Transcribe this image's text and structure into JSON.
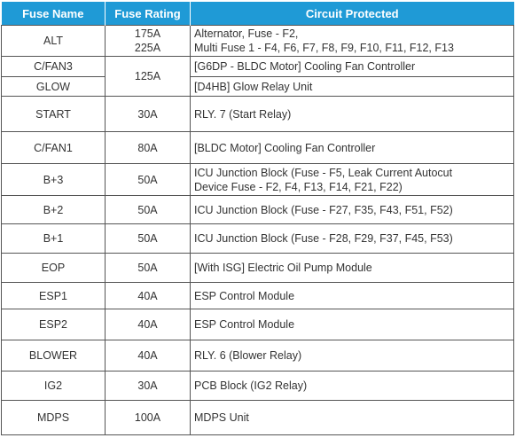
{
  "table": {
    "header": [
      "Fuse Name",
      "Fuse Rating",
      "Circuit Protected"
    ],
    "rows": [
      {
        "name": "ALT",
        "rating": [
          "175A",
          "225A"
        ],
        "circuit": [
          "Alternator, Fuse - F2,",
          "Multi Fuse 1 - F4, F6, F7, F8, F9, F10, F11, F12, F13"
        ]
      },
      {
        "name": "C/FAN3",
        "rating": [
          "125A"
        ],
        "circuit": [
          "[G6DP - BLDC Motor] Cooling Fan Controller"
        ]
      },
      {
        "name": "GLOW",
        "circuit": [
          "[D4HB] Glow Relay Unit"
        ]
      },
      {
        "name": "START",
        "rating": [
          "30A"
        ],
        "circuit": [
          "RLY. 7 (Start Relay)"
        ]
      },
      {
        "name": "C/FAN1",
        "rating": [
          "80A"
        ],
        "circuit": [
          "[BLDC Motor] Cooling Fan Controller"
        ]
      },
      {
        "name": "B+3",
        "rating": [
          "50A"
        ],
        "circuit": [
          "ICU Junction Block (Fuse - F5, Leak Current Autocut",
          "Device Fuse - F2, F4, F13, F14, F21, F22)"
        ]
      },
      {
        "name": "B+2",
        "rating": [
          "50A"
        ],
        "circuit": [
          "ICU Junction Block (Fuse - F27, F35, F43, F51, F52)"
        ]
      },
      {
        "name": "B+1",
        "rating": [
          "50A"
        ],
        "circuit": [
          "ICU Junction Block (Fuse - F28, F29, F37, F45, F53)"
        ]
      },
      {
        "name": "EOP",
        "rating": [
          "50A"
        ],
        "circuit": [
          "[With ISG] Electric Oil Pump Module"
        ]
      },
      {
        "name": "ESP1",
        "rating": [
          "40A"
        ],
        "circuit": [
          "ESP Control Module"
        ]
      },
      {
        "name": "ESP2",
        "rating": [
          "40A"
        ],
        "circuit": [
          "ESP Control Module"
        ]
      },
      {
        "name": "BLOWER",
        "rating": [
          "40A"
        ],
        "circuit": [
          "RLY. 6 (Blower Relay)"
        ]
      },
      {
        "name": "IG2",
        "rating": [
          "30A"
        ],
        "circuit": [
          "PCB Block (IG2 Relay)"
        ]
      },
      {
        "name": "MDPS",
        "rating": [
          "100A"
        ],
        "circuit": [
          "MDPS Unit"
        ]
      }
    ]
  }
}
